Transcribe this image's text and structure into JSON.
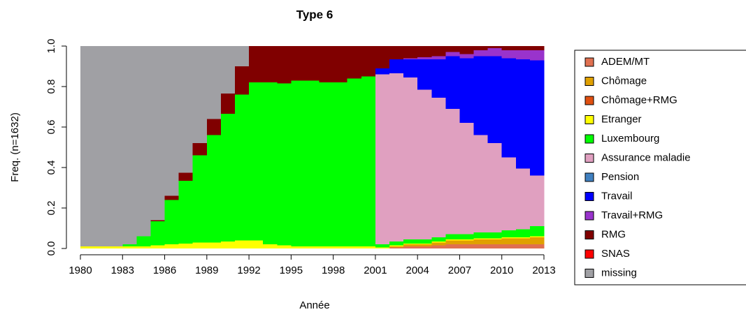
{
  "chart_data": {
    "type": "stacked-bar",
    "title": "Type 6",
    "x_label": "Année",
    "y_label": "Freq. (n=1632)",
    "x": [
      1980,
      1981,
      1982,
      1983,
      1984,
      1985,
      1986,
      1987,
      1988,
      1989,
      1990,
      1991,
      1992,
      1993,
      1994,
      1995,
      1996,
      1997,
      1998,
      1999,
      2000,
      2001,
      2002,
      2003,
      2004,
      2005,
      2006,
      2007,
      2008,
      2009,
      2010,
      2011,
      2012
    ],
    "xlim": [
      1980,
      2013
    ],
    "xticks": [
      1980,
      1983,
      1986,
      1989,
      1992,
      1995,
      1998,
      2001,
      2004,
      2007,
      2010,
      2013
    ],
    "ylim": [
      0,
      1
    ],
    "yticks": [
      {
        "value": 0,
        "label": "0.0"
      },
      0.2,
      0.4,
      0.6,
      0.8,
      {
        "value": 1,
        "label": "1.0"
      }
    ],
    "series": [
      {
        "name": "ADEM/MT",
        "color": "#e07050",
        "values": [
          0,
          0,
          0,
          0,
          0,
          0,
          0,
          0,
          0,
          0,
          0,
          0,
          0,
          0,
          0,
          0,
          0,
          0,
          0,
          0,
          0,
          0,
          0.005,
          0.01,
          0.01,
          0.015,
          0.02,
          0.02,
          0.02,
          0.02,
          0.02,
          0.02,
          0.02
        ]
      },
      {
        "name": "Chômage",
        "color": "#e0a000",
        "values": [
          0,
          0,
          0,
          0,
          0,
          0,
          0,
          0,
          0,
          0,
          0,
          0,
          0,
          0,
          0,
          0,
          0,
          0,
          0,
          0,
          0,
          0,
          0.005,
          0.01,
          0.01,
          0.015,
          0.02,
          0.02,
          0.025,
          0.025,
          0.03,
          0.03,
          0.035
        ]
      },
      {
        "name": "Chômage+RMG",
        "color": "#e05010",
        "values": [
          0,
          0,
          0,
          0,
          0,
          0,
          0,
          0,
          0,
          0,
          0,
          0,
          0,
          0,
          0,
          0,
          0,
          0,
          0,
          0,
          0,
          0,
          0,
          0,
          0,
          0,
          0,
          0,
          0,
          0,
          0,
          0,
          0
        ]
      },
      {
        "name": "Etranger",
        "color": "#ffff00",
        "values": [
          0.01,
          0.01,
          0.01,
          0.01,
          0.01,
          0.015,
          0.02,
          0.025,
          0.03,
          0.03,
          0.035,
          0.04,
          0.04,
          0.02,
          0.015,
          0.01,
          0.01,
          0.01,
          0.01,
          0.01,
          0.01,
          0.005,
          0.005,
          0.005,
          0.005,
          0.005,
          0.005,
          0.005,
          0.005,
          0.005,
          0.005,
          0.005,
          0.005
        ]
      },
      {
        "name": "Luxembourg",
        "color": "#00ff00",
        "values": [
          0,
          0,
          0,
          0.01,
          0.05,
          0.12,
          0.22,
          0.31,
          0.43,
          0.53,
          0.63,
          0.72,
          0.78,
          0.8,
          0.8,
          0.82,
          0.82,
          0.81,
          0.81,
          0.83,
          0.84,
          0.015,
          0.02,
          0.02,
          0.02,
          0.02,
          0.025,
          0.025,
          0.03,
          0.03,
          0.035,
          0.04,
          0.05
        ]
      },
      {
        "name": "Assurance maladie",
        "color": "#e0a0c0",
        "values": [
          0,
          0,
          0,
          0,
          0,
          0,
          0,
          0,
          0,
          0,
          0,
          0,
          0,
          0,
          0,
          0,
          0,
          0,
          0,
          0,
          0,
          0.84,
          0.83,
          0.8,
          0.74,
          0.69,
          0.62,
          0.55,
          0.48,
          0.44,
          0.36,
          0.3,
          0.25
        ]
      },
      {
        "name": "Pension",
        "color": "#4080c0",
        "values": [
          0,
          0,
          0,
          0,
          0,
          0,
          0,
          0,
          0,
          0,
          0,
          0,
          0,
          0,
          0,
          0,
          0,
          0,
          0,
          0,
          0,
          0,
          0,
          0,
          0,
          0,
          0,
          0,
          0,
          0,
          0,
          0,
          0
        ]
      },
      {
        "name": "Travail",
        "color": "#0000ff",
        "values": [
          0,
          0,
          0,
          0,
          0,
          0,
          0,
          0,
          0,
          0,
          0,
          0,
          0,
          0,
          0,
          0,
          0,
          0,
          0,
          0,
          0,
          0.03,
          0.07,
          0.09,
          0.15,
          0.19,
          0.26,
          0.32,
          0.39,
          0.43,
          0.49,
          0.54,
          0.57
        ]
      },
      {
        "name": "Travail+RMG",
        "color": "#9933cc",
        "values": [
          0,
          0,
          0,
          0,
          0,
          0,
          0,
          0,
          0,
          0,
          0,
          0,
          0,
          0,
          0,
          0,
          0,
          0,
          0,
          0,
          0,
          0,
          0,
          0.005,
          0.01,
          0.015,
          0.02,
          0.02,
          0.03,
          0.04,
          0.04,
          0.045,
          0.05
        ]
      },
      {
        "name": "RMG",
        "color": "#800000",
        "values": [
          0,
          0,
          0,
          0,
          0,
          0.005,
          0.02,
          0.04,
          0.06,
          0.08,
          0.1,
          0.14,
          0.18,
          0.18,
          0.185,
          0.17,
          0.17,
          0.18,
          0.18,
          0.16,
          0.15,
          0.11,
          0.065,
          0.06,
          0.055,
          0.05,
          0.03,
          0.04,
          0.02,
          0.01,
          0.02,
          0.02,
          0.02
        ]
      },
      {
        "name": "SNAS",
        "color": "#ff0000",
        "values": [
          0,
          0,
          0,
          0,
          0,
          0,
          0,
          0,
          0,
          0,
          0,
          0,
          0,
          0,
          0,
          0,
          0,
          0,
          0,
          0,
          0,
          0,
          0,
          0,
          0,
          0,
          0,
          0,
          0,
          0,
          0,
          0,
          0
        ]
      },
      {
        "name": "missing",
        "color": "#a0a0a4",
        "values": [
          0.99,
          0.99,
          0.99,
          0.98,
          0.94,
          0.86,
          0.74,
          0.625,
          0.48,
          0.36,
          0.235,
          0.1,
          0,
          0,
          0,
          0,
          0,
          0,
          0,
          0,
          0,
          0,
          0,
          0,
          0,
          0,
          0,
          0,
          0,
          0,
          0,
          0,
          0
        ]
      }
    ]
  }
}
